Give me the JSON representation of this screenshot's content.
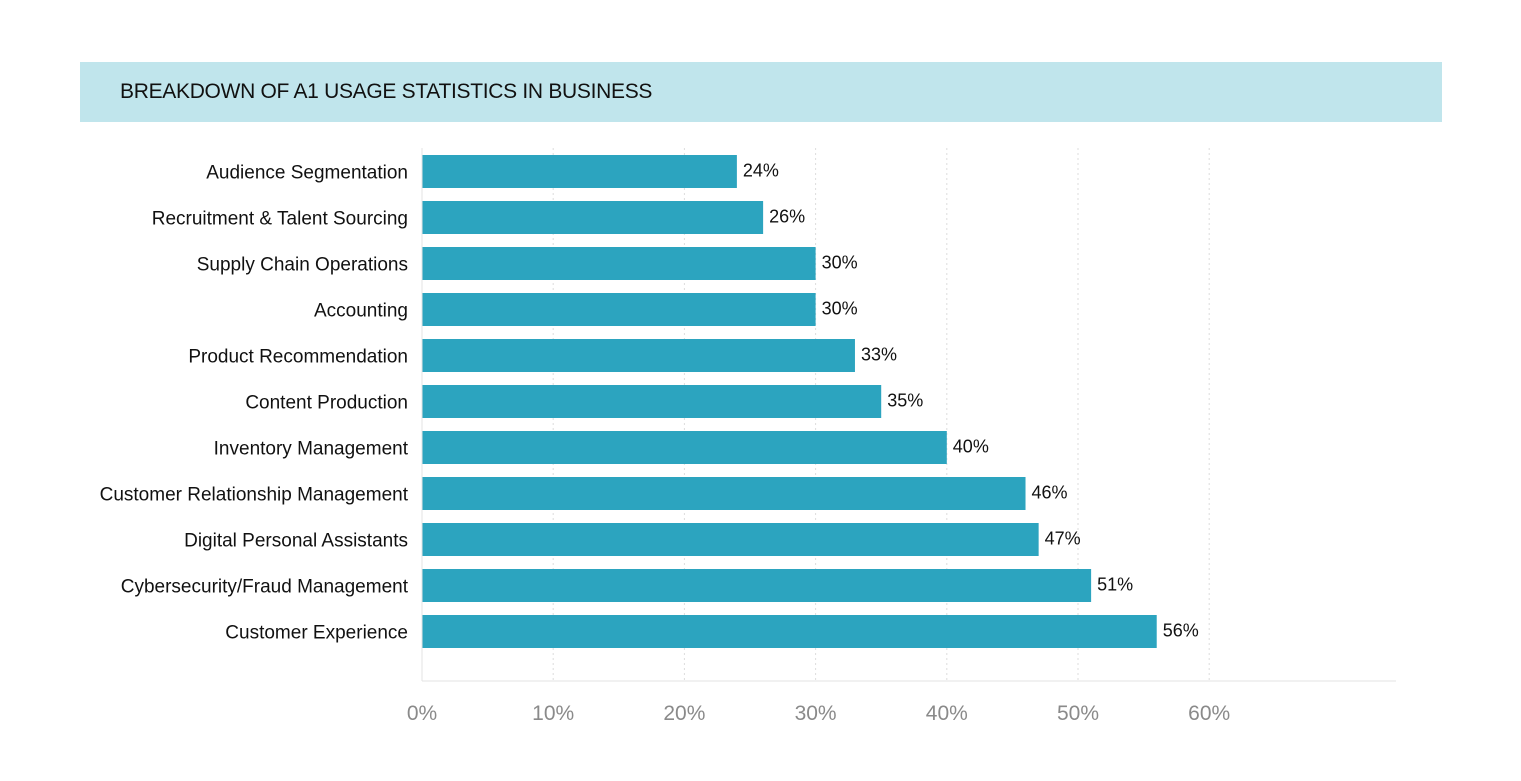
{
  "title": "BREAKDOWN OF A1 USAGE STATISTICS IN BUSINESS",
  "chart_data": {
    "type": "bar",
    "orientation": "horizontal",
    "title": "BREAKDOWN OF A1 USAGE STATISTICS IN BUSINESS",
    "categories": [
      "Audience Segmentation",
      "Recruitment & Talent Sourcing",
      "Supply Chain Operations",
      "Accounting",
      "Product Recommendation",
      "Content Production",
      "Inventory Management",
      "Customer Relationship Management",
      "Digital Personal Assistants",
      "Cybersecurity/Fraud Management",
      "Customer Experience"
    ],
    "values": [
      24,
      26,
      30,
      30,
      33,
      35,
      40,
      46,
      47,
      51,
      56
    ],
    "value_labels": [
      "24%",
      "26%",
      "30%",
      "30%",
      "33%",
      "35%",
      "40%",
      "46%",
      "47%",
      "51%",
      "56%"
    ],
    "xticks": [
      0,
      10,
      20,
      30,
      40,
      50,
      60
    ],
    "xtick_labels": [
      "0%",
      "10%",
      "20%",
      "30%",
      "40%",
      "50%",
      "60%"
    ],
    "xlim": [
      0,
      74
    ],
    "grid": "vertical dotted",
    "bar_color": "#2ca4bf",
    "title_background": "#c0e5ec"
  }
}
